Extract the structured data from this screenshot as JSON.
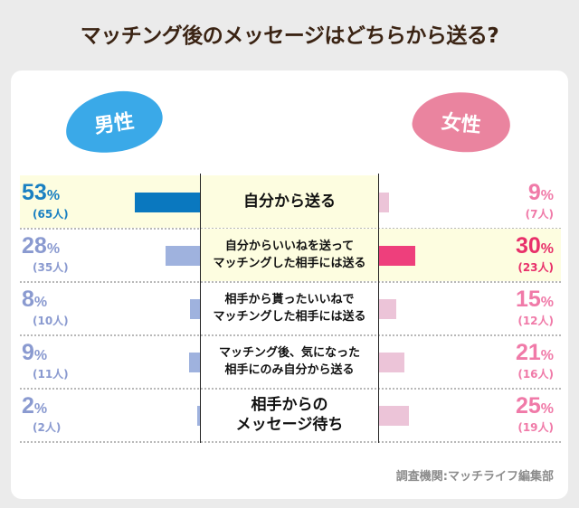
{
  "title": "マッチング後のメッセージはどちらから送る?",
  "colors": {
    "male_blob": "#3aa9e8",
    "female_blob": "#ea849f",
    "male_highlight": "#0a78bf",
    "male_bar": "#9fb2de",
    "female_highlight": "#ee3f7c",
    "female_bar": "#ecc4d8",
    "male_text_highlight": "#1a80c2",
    "male_text": "#8a9ad0",
    "female_text_highlight": "#e8306a",
    "female_text": "#f07aa8"
  },
  "chart_data": {
    "type": "bar",
    "orientation": "horizontal-butterfly",
    "categories": [
      "自分から送る",
      "自分からいいねを送って\nマッチングした相手には送る",
      "相手から貰ったいいねで\nマッチングした相手には送る",
      "マッチング後、気になった\n相手にのみ自分から送る",
      "相手からの\nメッセージ待ち"
    ],
    "series": [
      {
        "name": "男性",
        "values": [
          53,
          28,
          8,
          9,
          2
        ],
        "counts": [
          "(65人)",
          "(35人)",
          "(10人)",
          "(11人)",
          "(2人)"
        ],
        "highlight_index": 0
      },
      {
        "name": "女性",
        "values": [
          9,
          30,
          15,
          21,
          25
        ],
        "counts": [
          "(7人)",
          "(23人)",
          "(12人)",
          "(16人)",
          "(19人)"
        ],
        "highlight_index": 1
      }
    ],
    "unit": "%"
  },
  "source": "調査機関:マッチライフ編集部"
}
